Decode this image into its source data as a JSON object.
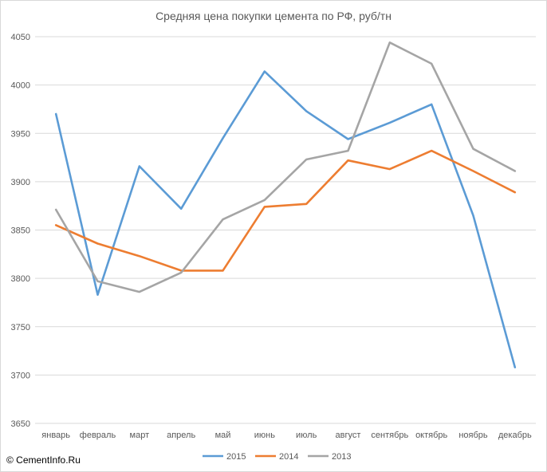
{
  "watermark": "© CementInfo.Ru",
  "chart_data": {
    "type": "line",
    "title": "Средняя цена покупки цемента по РФ, руб/тн",
    "xlabel": "",
    "ylabel": "",
    "categories": [
      "январь",
      "февраль",
      "март",
      "апрель",
      "май",
      "июнь",
      "июль",
      "август",
      "сентябрь",
      "октябрь",
      "ноябрь",
      "декабрь"
    ],
    "ylim": [
      3650,
      4050
    ],
    "yticks": [
      3650,
      3700,
      3750,
      3800,
      3850,
      3900,
      3950,
      4000,
      4050
    ],
    "grid": true,
    "legend": "bottom",
    "series": [
      {
        "name": "2015",
        "color": "#5b9bd5",
        "values": [
          3970,
          3783,
          3916,
          3872,
          3945,
          4014,
          3973,
          3944,
          3961,
          3980,
          3865,
          3708
        ]
      },
      {
        "name": "2014",
        "color": "#ed7d31",
        "values": [
          3855,
          3836,
          3823,
          3808,
          3808,
          3874,
          3877,
          3922,
          3913,
          3932,
          3911,
          3889
        ]
      },
      {
        "name": "2013",
        "color": "#a5a5a5",
        "values": [
          3871,
          3797,
          3786,
          3806,
          3861,
          3881,
          3923,
          3932,
          4044,
          4022,
          3934,
          3911
        ]
      }
    ]
  }
}
